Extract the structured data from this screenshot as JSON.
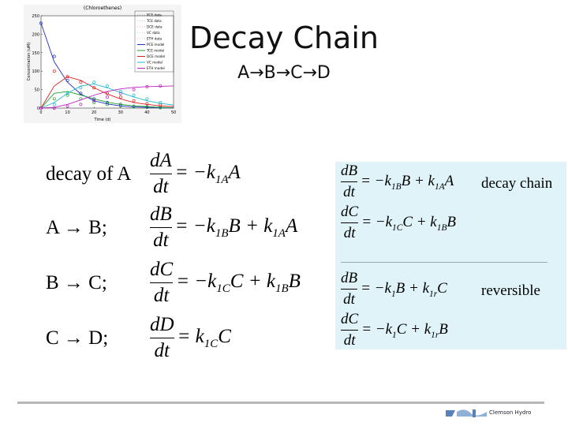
{
  "slide": {
    "title": "Decay Chain",
    "subtitle": "A→B→C→D",
    "figure": {
      "title": "(Chloroethenes)",
      "x_label": "Time (d)",
      "y_label": "Concentration (uM)",
      "xlim": [
        0,
        50
      ],
      "ylim": [
        0,
        250
      ],
      "xticks": [
        0,
        10,
        20,
        30,
        40,
        50
      ],
      "yticks": [
        0,
        50,
        100,
        150,
        200,
        250
      ],
      "series": [
        {
          "name": "PCE data",
          "kind": "data",
          "color": "#2030c0",
          "x": [
            0,
            5,
            10,
            15,
            20,
            25,
            30,
            35,
            40,
            45
          ],
          "values": [
            230,
            140,
            75,
            40,
            25,
            15,
            10,
            5,
            3,
            2
          ]
        },
        {
          "name": "TCE data",
          "kind": "data",
          "color": "#20a030",
          "x": [
            0,
            5,
            10,
            15,
            20,
            25,
            30,
            35,
            40,
            45
          ],
          "values": [
            0,
            25,
            35,
            25,
            15,
            10,
            6,
            4,
            2,
            1
          ]
        },
        {
          "name": "DCE data",
          "kind": "data",
          "color": "#e02020",
          "x": [
            0,
            5,
            10,
            15,
            20,
            25,
            30,
            35,
            40,
            45
          ],
          "values": [
            0,
            100,
            85,
            70,
            55,
            40,
            30,
            20,
            12,
            8
          ]
        },
        {
          "name": "VC data",
          "kind": "data",
          "color": "#20b8d0",
          "x": [
            0,
            5,
            10,
            15,
            20,
            25,
            30,
            35,
            40,
            45
          ],
          "values": [
            0,
            10,
            40,
            55,
            70,
            60,
            45,
            35,
            25,
            15
          ]
        },
        {
          "name": "ETH data",
          "kind": "data",
          "color": "#c020c0",
          "x": [
            0,
            5,
            10,
            15,
            20,
            25,
            30,
            35,
            40,
            45
          ],
          "values": [
            0,
            0,
            5,
            10,
            20,
            30,
            40,
            50,
            58,
            60
          ]
        },
        {
          "name": "PCE model",
          "kind": "model",
          "color": "#2030c0",
          "x": [
            0,
            5,
            10,
            15,
            20,
            25,
            30,
            35,
            40,
            45,
            50
          ],
          "values": [
            230,
            125,
            70,
            38,
            20,
            11,
            6,
            3,
            2,
            1,
            0.5
          ]
        },
        {
          "name": "TCE model",
          "kind": "model",
          "color": "#20a030",
          "x": [
            0,
            5,
            10,
            15,
            20,
            25,
            30,
            35,
            40,
            45,
            50
          ],
          "values": [
            0,
            40,
            45,
            35,
            25,
            16,
            10,
            6,
            4,
            2,
            1
          ]
        },
        {
          "name": "DCE model",
          "kind": "model",
          "color": "#e02020",
          "x": [
            0,
            5,
            10,
            15,
            20,
            25,
            30,
            35,
            40,
            45,
            50
          ],
          "values": [
            0,
            60,
            85,
            75,
            55,
            38,
            25,
            15,
            10,
            6,
            4
          ]
        },
        {
          "name": "VC model",
          "kind": "model",
          "color": "#20b8d0",
          "x": [
            0,
            5,
            10,
            15,
            20,
            25,
            30,
            35,
            40,
            45,
            50
          ],
          "values": [
            0,
            15,
            40,
            60,
            65,
            55,
            42,
            30,
            20,
            13,
            8
          ]
        },
        {
          "name": "ETH model",
          "kind": "model",
          "color": "#c020c0",
          "x": [
            0,
            5,
            10,
            15,
            20,
            25,
            30,
            35,
            40,
            45,
            50
          ],
          "values": [
            0,
            2,
            10,
            22,
            35,
            45,
            52,
            56,
            58,
            59,
            60
          ]
        }
      ]
    },
    "left_equations": [
      {
        "lhs": "decay of A",
        "num": "dA",
        "den": "dt",
        "rhs": [
          {
            "t": "= −k",
            "s": "1A"
          },
          {
            "t": "A"
          }
        ]
      },
      {
        "lhs": "A → B;",
        "num": "dB",
        "den": "dt",
        "rhs": [
          {
            "t": "= −k",
            "s": "1B"
          },
          {
            "t": "B + k",
            "s": "1A"
          },
          {
            "t": "A"
          }
        ]
      },
      {
        "lhs": "B → C;",
        "num": "dC",
        "den": "dt",
        "rhs": [
          {
            "t": "= −k",
            "s": "1C"
          },
          {
            "t": "C + k",
            "s": "1B"
          },
          {
            "t": "B"
          }
        ]
      },
      {
        "lhs": "C → D;",
        "num": "dD",
        "den": "dt",
        "rhs": [
          {
            "t": "= k",
            "s": "1C"
          },
          {
            "t": "C"
          }
        ]
      }
    ],
    "right_equations": [
      {
        "num": "dB",
        "den": "dt",
        "rhs": [
          {
            "t": "= −k",
            "s": "1B"
          },
          {
            "t": "B + k",
            "s": "1A"
          },
          {
            "t": "A"
          }
        ],
        "note": "decay chain"
      },
      {
        "num": "dC",
        "den": "dt",
        "rhs": [
          {
            "t": "= −k",
            "s": "1C"
          },
          {
            "t": "C + k",
            "s": "1B"
          },
          {
            "t": "B"
          }
        ]
      },
      {
        "num": "dB",
        "den": "dt",
        "rhs": [
          {
            "t": "= −k",
            "s": "1"
          },
          {
            "t": "B + k",
            "s": "1r"
          },
          {
            "t": "C"
          }
        ],
        "note": "reversible"
      },
      {
        "num": "dC",
        "den": "dt",
        "rhs": [
          {
            "t": "= −k",
            "s": "1"
          },
          {
            "t": "C + k",
            "s": "1r"
          },
          {
            "t": "B"
          }
        ]
      }
    ],
    "footer": "Clemson Hydro"
  }
}
